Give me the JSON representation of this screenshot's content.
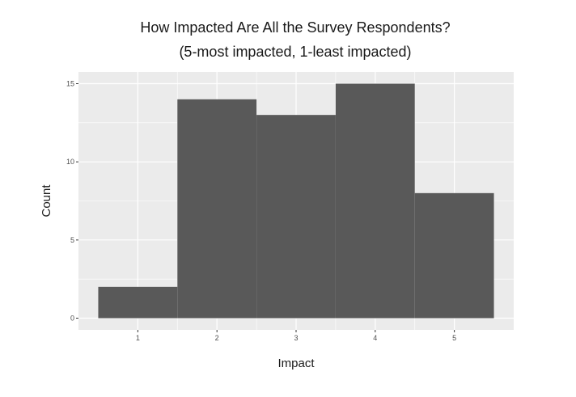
{
  "chart_data": {
    "type": "bar",
    "title": "How Impacted Are All the Survey Respondents?",
    "subtitle": "(5-most impacted, 1-least impacted)",
    "xlabel": "Impact",
    "ylabel": "Count",
    "categories": [
      "1",
      "2",
      "3",
      "4",
      "5"
    ],
    "values": [
      2,
      14,
      13,
      15,
      8
    ],
    "x_ticks": [
      1,
      2,
      3,
      4,
      5
    ],
    "y_ticks": [
      0,
      5,
      10,
      15
    ],
    "xlim": [
      0.25,
      5.75
    ],
    "ylim": [
      -0.75,
      15.75
    ],
    "grid": true,
    "colors": {
      "bar": "#595959",
      "panel": "#ebebeb",
      "grid": "#ffffff"
    }
  }
}
